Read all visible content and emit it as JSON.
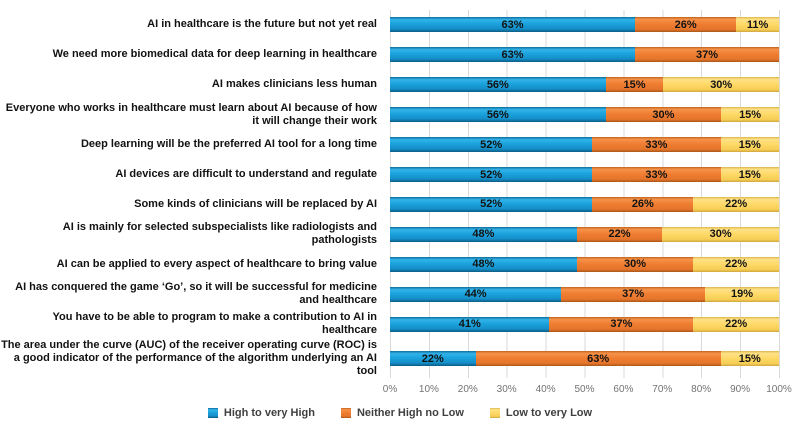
{
  "chart_data": {
    "type": "bar",
    "orientation": "horizontal-stacked",
    "title": "",
    "xlabel": "",
    "ylabel": "",
    "xlim": [
      0,
      100
    ],
    "grid": true,
    "gridline_color": "#d9d9d9",
    "legend_position": "bottom",
    "x_ticks": [
      "0%",
      "10%",
      "20%",
      "30%",
      "40%",
      "50%",
      "60%",
      "70%",
      "80%",
      "90%",
      "100%"
    ],
    "categories": [
      "AI in healthcare is the future but not yet real",
      "We need more biomedical data for deep learning in healthcare",
      "AI makes clinicians less human",
      "Everyone who works in healthcare must learn about AI because of how it will change their work",
      "Deep learning will be the preferred AI tool for a long time",
      "AI devices are difficult to understand and regulate",
      "Some kinds of clinicians will be replaced by AI",
      "AI is mainly for selected subspecialists like radiologists and pathologists",
      "AI can be applied to every aspect of healthcare to bring value",
      "AI has conquered the game ‘Go’, so it will be successful for medicine and healthcare",
      "You have to be able to program to make a contribution to AI in healthcare",
      "The area under the curve (AUC) of the receiver operating curve (ROC) is a good indicator of the performance of the algorithm underlying an AI tool"
    ],
    "series": [
      {
        "key": "high",
        "name": "High to very High",
        "color": "#189bd7",
        "values": [
          63,
          63,
          56,
          56,
          52,
          52,
          52,
          48,
          48,
          44,
          41,
          22
        ]
      },
      {
        "key": "neither",
        "name": "Neither High no Low",
        "color": "#ed7d31",
        "values": [
          26,
          37,
          15,
          30,
          33,
          33,
          26,
          22,
          30,
          37,
          37,
          63
        ]
      },
      {
        "key": "low",
        "name": "Low to very Low",
        "color": "#ffd966",
        "values": [
          11,
          0,
          30,
          15,
          15,
          15,
          22,
          30,
          22,
          19,
          22,
          15
        ]
      }
    ],
    "data_label_suffix": "%"
  }
}
